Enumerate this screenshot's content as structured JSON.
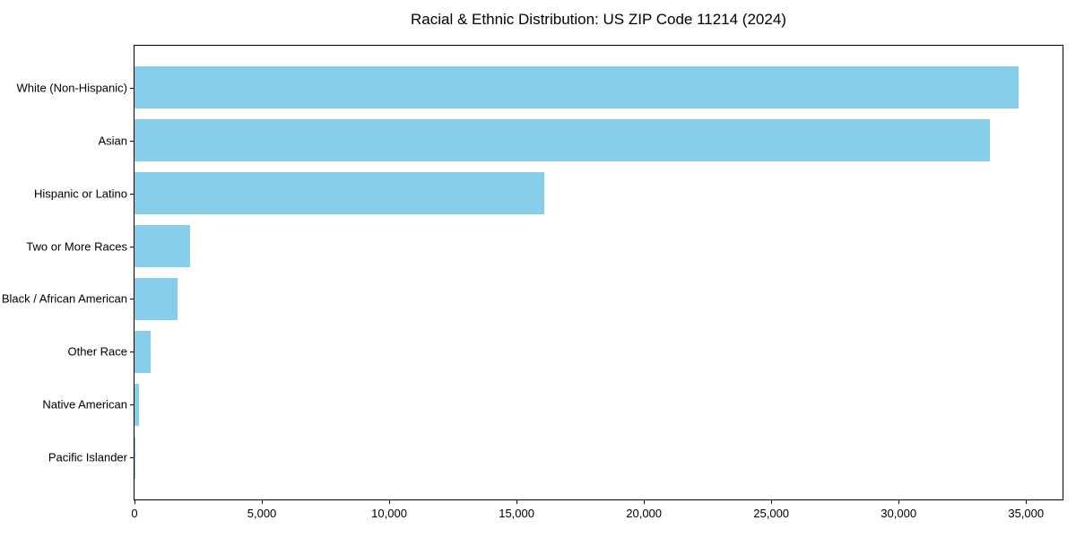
{
  "chart_data": {
    "type": "bar",
    "orientation": "horizontal",
    "title": "Racial & Ethnic Distribution: US ZIP Code 11214 (2024)",
    "categories": [
      "White (Non-Hispanic)",
      "Asian",
      "Hispanic or Latino",
      "Two or More Races",
      "Black / African American",
      "Other Race",
      "Native American",
      "Pacific Islander"
    ],
    "values": [
      34700,
      33600,
      16100,
      2200,
      1700,
      640,
      180,
      20
    ],
    "x_ticks": [
      0,
      5000,
      10000,
      15000,
      20000,
      25000,
      30000,
      35000
    ],
    "x_tick_labels": [
      "0",
      "5,000",
      "10,000",
      "15,000",
      "20,000",
      "25,000",
      "30,000",
      "35,000"
    ],
    "xlabel": "",
    "ylabel": "",
    "xlim": [
      0,
      36435
    ],
    "grid": false,
    "legend": null
  },
  "colors": {
    "bar": "#87CEEB",
    "axis": "#000000",
    "text": "#000000",
    "background": "#FFFFFF"
  }
}
